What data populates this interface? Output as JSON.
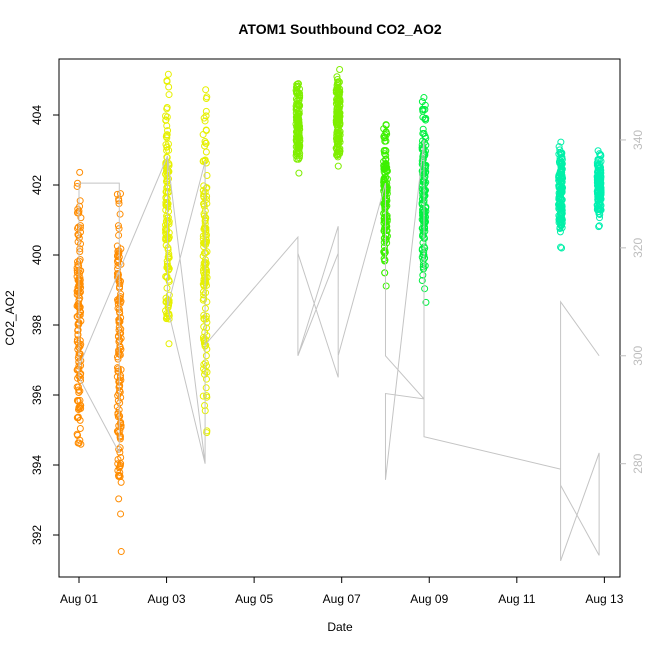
{
  "chart_data": {
    "type": "scatter",
    "title": "ATOM1 Southbound CO2_AO2",
    "xlabel": "Date",
    "ylabel": "CO2_AO2",
    "y2label": "",
    "x_ticks": [
      "Aug 01",
      "Aug 03",
      "Aug 05",
      "Aug 07",
      "Aug 09",
      "Aug 11",
      "Aug 13"
    ],
    "xlim": [
      0,
      11.9
    ],
    "ylim": [
      390.8,
      405.6
    ],
    "y_ticks": [
      392,
      394,
      396,
      398,
      400,
      402,
      404
    ],
    "y2lim": [
      259,
      355
    ],
    "y2_ticks": [
      280,
      300,
      320,
      340
    ],
    "grid": false,
    "point_series": [
      {
        "name": "",
        "color": "#FF8C00",
        "x": 0.0,
        "low": 393.1,
        "high": 402.4
      },
      {
        "name": "",
        "color": "#FF8C00",
        "x": 0.92,
        "low": 391.3,
        "high": 402.3
      },
      {
        "name": "",
        "color": "#E6F000",
        "x": 2.02,
        "low": 396.8,
        "high": 405.3
      },
      {
        "name": "",
        "color": "#E6F000",
        "x": 2.88,
        "low": 393.7,
        "high": 405.3
      },
      {
        "name": "",
        "color": "#7FEE00",
        "x": 5.0,
        "low": 402.3,
        "high": 405.0
      },
      {
        "name": "",
        "color": "#7FEE00",
        "x": 5.92,
        "low": 402.3,
        "high": 405.3
      },
      {
        "name": "",
        "color": "#3CF000",
        "x": 7.0,
        "low": 399.1,
        "high": 403.9
      },
      {
        "name": "",
        "color": "#00F040",
        "x": 7.88,
        "low": 398.6,
        "high": 404.9
      },
      {
        "name": "",
        "color": "#00F0A8",
        "x": 11.0,
        "low": 400.1,
        "high": 403.4
      },
      {
        "name": "",
        "color": "#00F0B0",
        "x": 11.88,
        "low": 400.8,
        "high": 403.1
      }
    ],
    "secondary_line": {
      "color": "#c4c4c4",
      "x": [
        0.0,
        0.0,
        0.92,
        0.92,
        0.0,
        0.0,
        2.02,
        2.02,
        2.88,
        2.88,
        2.02,
        2.02,
        2.88,
        2.88,
        5.0,
        5.0,
        5.92,
        5.92,
        5.0,
        5.0,
        5.92,
        5.92,
        7.0,
        7.0,
        7.88,
        7.88,
        7.0,
        7.0,
        7.88,
        7.88,
        11.0,
        11.0,
        11.88,
        11.88,
        11.0,
        11.0,
        11.88
      ],
      "y": [
        332,
        296,
        282,
        332,
        332,
        298,
        337,
        309,
        280,
        336,
        309,
        337,
        280,
        302,
        322,
        300,
        324,
        296,
        319,
        300,
        319,
        300,
        332,
        300,
        292,
        340,
        277,
        293,
        292,
        285,
        279,
        262,
        282,
        263,
        276,
        310,
        300
      ]
    }
  }
}
